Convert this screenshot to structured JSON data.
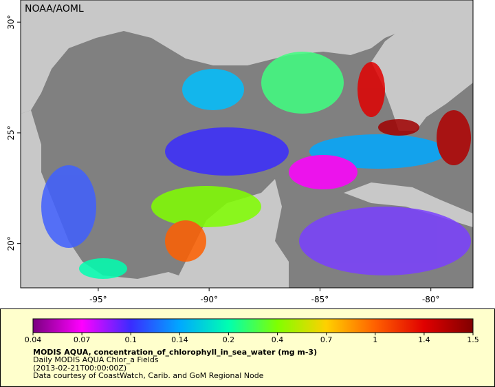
{
  "map": {
    "label": "NOAA/AOML",
    "lon_range": [
      -98.5,
      -78.1
    ],
    "lat_range": [
      18,
      31
    ],
    "lon_ticks": [
      {
        "value": -95,
        "label": "-95°"
      },
      {
        "value": -90,
        "label": "-90°"
      },
      {
        "value": -85,
        "label": "-85°"
      },
      {
        "value": -80,
        "label": "-80°"
      }
    ],
    "lat_ticks": [
      {
        "value": 20,
        "label": "20°"
      },
      {
        "value": 25,
        "label": "25°"
      },
      {
        "value": 30,
        "label": "30°"
      }
    ]
  },
  "colorbar": {
    "scale": "log",
    "ticks": [
      0.04,
      0.07,
      0.1,
      0.14,
      0.2,
      0.4,
      0.7,
      1,
      1.4,
      1.5
    ],
    "colors": [
      "#7a0080",
      "#ff00ff",
      "#3a2cff",
      "#00a8ff",
      "#00ffb0",
      "#80ff00",
      "#ffd000",
      "#ff6000",
      "#e00000",
      "#800000"
    ],
    "title": "MODIS AQUA, concentration_of_chlorophyll_in_sea_water (mg m-3)",
    "lines": [
      "Daily MODIS AQUA Chlor_a Fields",
      "(2013-02-21T00:00:00Z)",
      "Data courtesy of CoastWatch, Carib. and GoM Regional Node"
    ]
  }
}
